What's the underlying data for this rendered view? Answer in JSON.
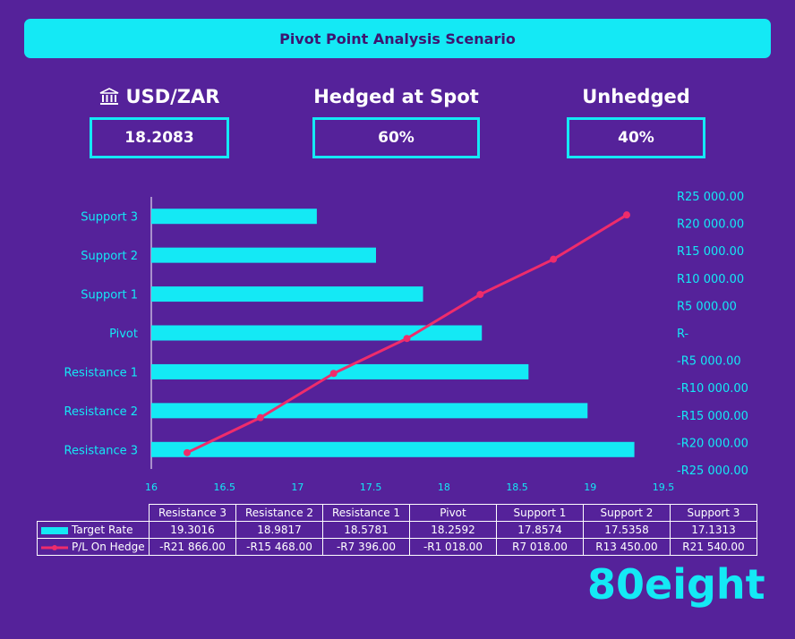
{
  "banner": {
    "title": "Pivot Point Analysis Scenario"
  },
  "stats": {
    "pair_label": "USD/ZAR",
    "pair_icon": "bank-icon",
    "spot_rate": "18.2083",
    "hedged_label": "Hedged at Spot",
    "hedged_value": "60%",
    "unhedged_label": "Unhedged",
    "unhedged_value": "40%"
  },
  "chart_data": {
    "type": "bar",
    "categories": [
      "Support 3",
      "Support 2",
      "Support 1",
      "Pivot",
      "Resistance 1",
      "Resistance 2",
      "Resistance 3"
    ],
    "series": [
      {
        "name": "Target Rate",
        "type": "bar",
        "orientation": "horizontal",
        "color": "#14e9f5",
        "values": [
          17.1313,
          17.5358,
          17.8574,
          18.2592,
          18.5781,
          18.9817,
          19.3016
        ]
      },
      {
        "name": "P/L On Hedge",
        "type": "line",
        "color": "#ef2c6b",
        "values": [
          21540,
          13450,
          7018,
          -1018,
          -7396,
          -15468,
          -21866
        ]
      }
    ],
    "x_axis": {
      "min": 16,
      "max": 19.5,
      "ticks": [
        "16",
        "16.5",
        "17",
        "17.5",
        "18",
        "18.5",
        "19",
        "19.5"
      ]
    },
    "y2_axis": {
      "min": -25000,
      "max": 25000,
      "ticks": [
        "R25 000.00",
        "R20 000.00",
        "R15 000.00",
        "R10 000.00",
        "R5 000.00",
        "R-",
        "-R5 000.00",
        "-R10 000.00",
        "-R15 000.00",
        "-R20 000.00",
        "-R25 000.00"
      ]
    },
    "table": {
      "columns": [
        "Resistance 3",
        "Resistance 2",
        "Resistance 1",
        "Pivot",
        "Support 1",
        "Support 2",
        "Support 3"
      ],
      "rows": [
        {
          "label": "Target Rate",
          "values": [
            "19.3016",
            "18.9817",
            "18.5781",
            "18.2592",
            "17.8574",
            "17.5358",
            "17.1313"
          ]
        },
        {
          "label": "P/L On Hedge",
          "values": [
            "-R21 866.00",
            "-R15 468.00",
            "-R7 396.00",
            "-R1 018.00",
            "R7 018.00",
            "R13 450.00",
            "R21 540.00"
          ]
        }
      ]
    }
  },
  "brand": {
    "logo": "80eight"
  }
}
